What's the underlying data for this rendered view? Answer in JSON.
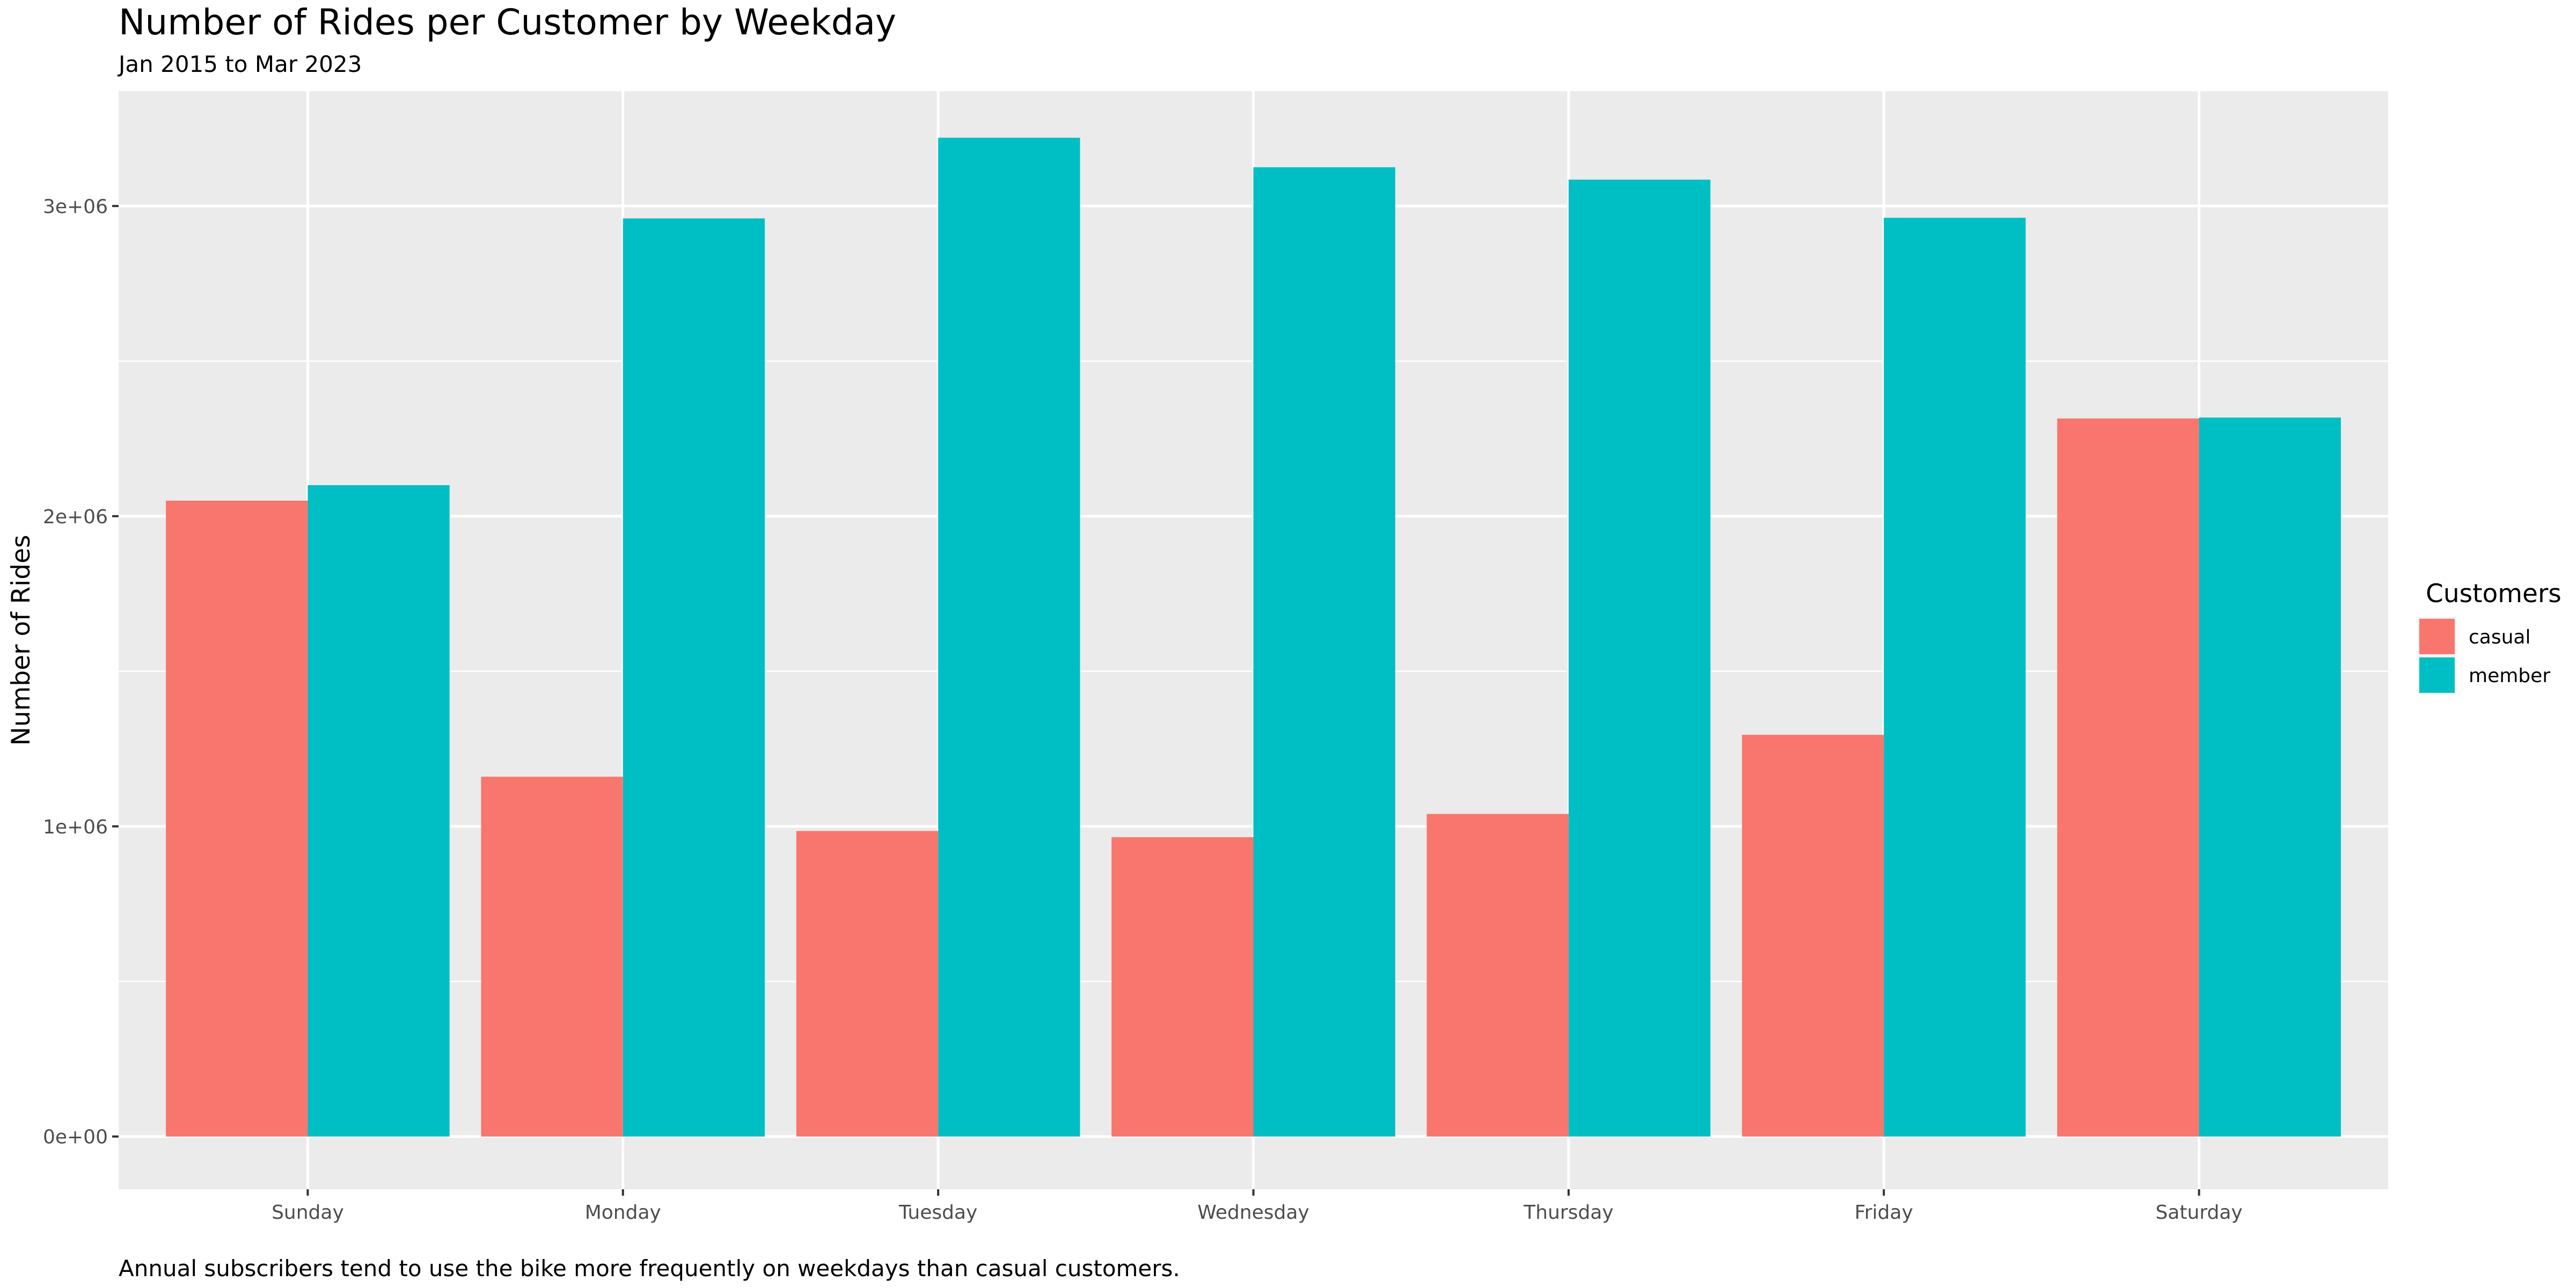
{
  "chart_data": {
    "type": "bar",
    "title": "Number of Rides per Customer by Weekday",
    "subtitle": "Jan 2015 to Mar 2023",
    "caption": "Annual subscribers tend to use the bike more frequently on weekdays than casual customers.",
    "xlabel": "",
    "ylabel": "Number of Rides",
    "categories": [
      "Sunday",
      "Monday",
      "Tuesday",
      "Wednesday",
      "Thursday",
      "Friday",
      "Saturday"
    ],
    "series": [
      {
        "name": "casual",
        "color": "#F8766D",
        "values": [
          2050000,
          1160000,
          985000,
          965000,
          1040000,
          1295000,
          2315000
        ]
      },
      {
        "name": "member",
        "color": "#00BFC4",
        "values": [
          2100000,
          2960000,
          3220000,
          3125000,
          3085000,
          2962000,
          2318000
        ]
      }
    ],
    "ylim": [
      -170000,
      3370000
    ],
    "yticks": [
      0,
      1000000,
      2000000,
      3000000
    ],
    "ytick_labels": [
      "0e+00",
      "1e+06",
      "2e+06",
      "3e+06"
    ],
    "legend": {
      "title": "Customers",
      "position": "right",
      "entries": [
        "casual",
        "member"
      ]
    },
    "panel_background": "#EBEBEB",
    "grid": true,
    "grid_color": "#FFFFFF"
  }
}
